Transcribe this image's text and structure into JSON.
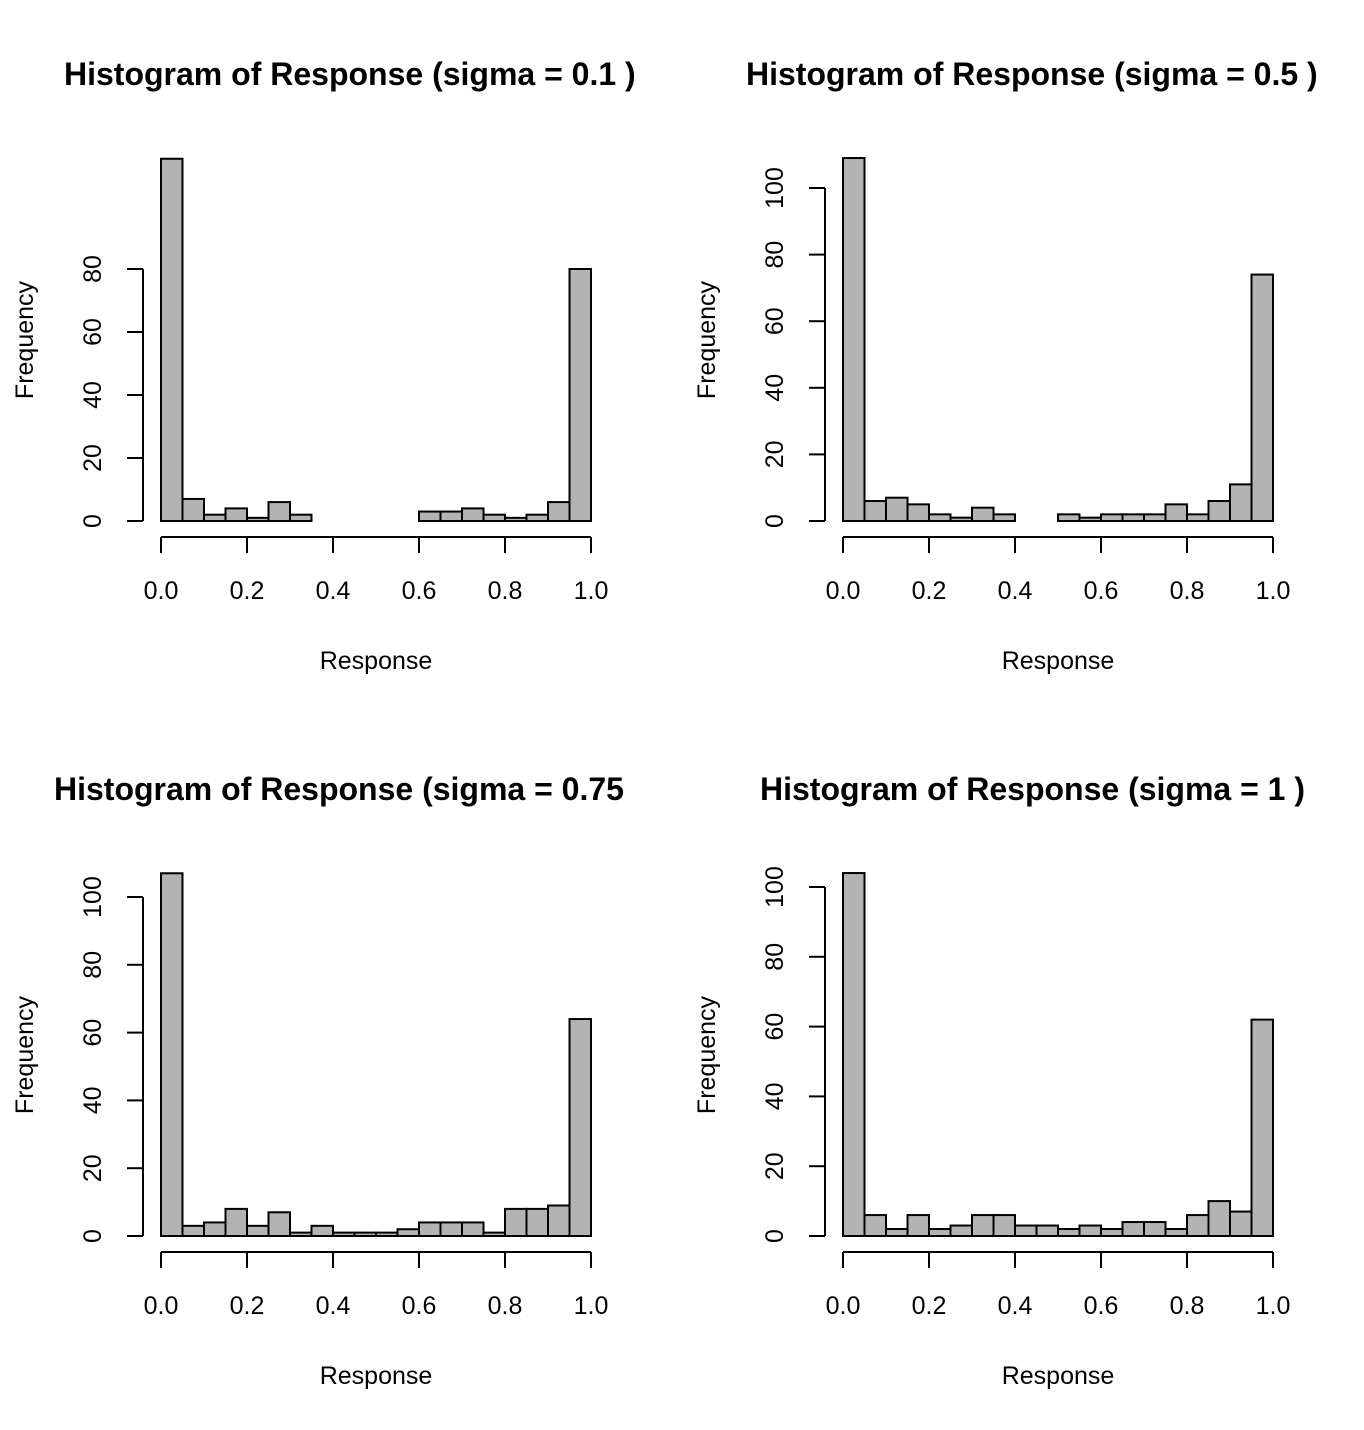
{
  "chart_data": [
    {
      "type": "bar",
      "title": "Histogram of Response (sigma = 0.1 )",
      "xlabel": "Response",
      "ylabel": "Frequency",
      "bin_width": 0.05,
      "x_ticks": [
        "0.0",
        "0.2",
        "0.4",
        "0.6",
        "0.8",
        "1.0"
      ],
      "y_ticks": [
        "0",
        "20",
        "40",
        "60",
        "80"
      ],
      "x_tick_values": [
        0,
        0.2,
        0.4,
        0.6,
        0.8,
        1.0
      ],
      "y_tick_values": [
        0,
        20,
        40,
        60,
        80
      ],
      "xlim": [
        0,
        1
      ],
      "ylim": [
        0,
        100
      ],
      "bin_starts": [
        0,
        0.05,
        0.1,
        0.15,
        0.2,
        0.25,
        0.3,
        0.35,
        0.4,
        0.45,
        0.5,
        0.55,
        0.6,
        0.65,
        0.7,
        0.75,
        0.8,
        0.85,
        0.9,
        0.95
      ],
      "values": [
        115,
        7,
        2,
        4,
        1,
        6,
        2,
        0,
        0,
        0,
        0,
        0,
        3,
        3,
        4,
        2,
        1,
        2,
        6,
        80
      ]
    },
    {
      "type": "bar",
      "title": "Histogram of Response (sigma = 0.5 )",
      "xlabel": "Response",
      "ylabel": "Frequency",
      "bin_width": 0.05,
      "x_ticks": [
        "0.0",
        "0.2",
        "0.4",
        "0.6",
        "0.8",
        "1.0"
      ],
      "y_ticks": [
        "0",
        "20",
        "40",
        "60",
        "80",
        "100"
      ],
      "x_tick_values": [
        0,
        0.2,
        0.4,
        0.6,
        0.8,
        1.0
      ],
      "y_tick_values": [
        0,
        20,
        40,
        60,
        80,
        100
      ],
      "xlim": [
        0,
        1
      ],
      "ylim": [
        0,
        100
      ],
      "bin_starts": [
        0,
        0.05,
        0.1,
        0.15,
        0.2,
        0.25,
        0.3,
        0.35,
        0.4,
        0.45,
        0.5,
        0.55,
        0.6,
        0.65,
        0.7,
        0.75,
        0.8,
        0.85,
        0.9,
        0.95
      ],
      "values": [
        109,
        6,
        7,
        5,
        2,
        1,
        4,
        2,
        0,
        0,
        2,
        1,
        2,
        2,
        2,
        5,
        2,
        6,
        11,
        74
      ]
    },
    {
      "type": "bar",
      "title": "Histogram of Response (sigma = 0.75",
      "xlabel": "Response",
      "ylabel": "Frequency",
      "bin_width": 0.05,
      "x_ticks": [
        "0.0",
        "0.2",
        "0.4",
        "0.6",
        "0.8",
        "1.0"
      ],
      "y_ticks": [
        "0",
        "20",
        "40",
        "60",
        "80",
        "100"
      ],
      "x_tick_values": [
        0,
        0.2,
        0.4,
        0.6,
        0.8,
        1.0
      ],
      "y_tick_values": [
        0,
        20,
        40,
        60,
        80,
        100
      ],
      "xlim": [
        0,
        1
      ],
      "ylim": [
        0,
        100
      ],
      "bin_starts": [
        0,
        0.05,
        0.1,
        0.15,
        0.2,
        0.25,
        0.3,
        0.35,
        0.4,
        0.45,
        0.5,
        0.55,
        0.6,
        0.65,
        0.7,
        0.75,
        0.8,
        0.85,
        0.9,
        0.95
      ],
      "values": [
        107,
        3,
        4,
        8,
        3,
        7,
        1,
        3,
        1,
        1,
        1,
        2,
        4,
        4,
        4,
        1,
        8,
        8,
        9,
        64
      ]
    },
    {
      "type": "bar",
      "title": "Histogram of Response (sigma = 1 )",
      "xlabel": "Response",
      "ylabel": "Frequency",
      "bin_width": 0.05,
      "x_ticks": [
        "0.0",
        "0.2",
        "0.4",
        "0.6",
        "0.8",
        "1.0"
      ],
      "y_ticks": [
        "0",
        "20",
        "40",
        "60",
        "80",
        "100"
      ],
      "x_tick_values": [
        0,
        0.2,
        0.4,
        0.6,
        0.8,
        1.0
      ],
      "y_tick_values": [
        0,
        20,
        40,
        60,
        80,
        100
      ],
      "xlim": [
        0,
        1
      ],
      "ylim": [
        0,
        100
      ],
      "bin_starts": [
        0,
        0.05,
        0.1,
        0.15,
        0.2,
        0.25,
        0.3,
        0.35,
        0.4,
        0.45,
        0.5,
        0.55,
        0.6,
        0.65,
        0.7,
        0.75,
        0.8,
        0.85,
        0.9,
        0.95
      ],
      "values": [
        104,
        6,
        2,
        6,
        2,
        3,
        6,
        6,
        3,
        3,
        2,
        3,
        2,
        4,
        4,
        2,
        6,
        10,
        7,
        62
      ]
    }
  ]
}
